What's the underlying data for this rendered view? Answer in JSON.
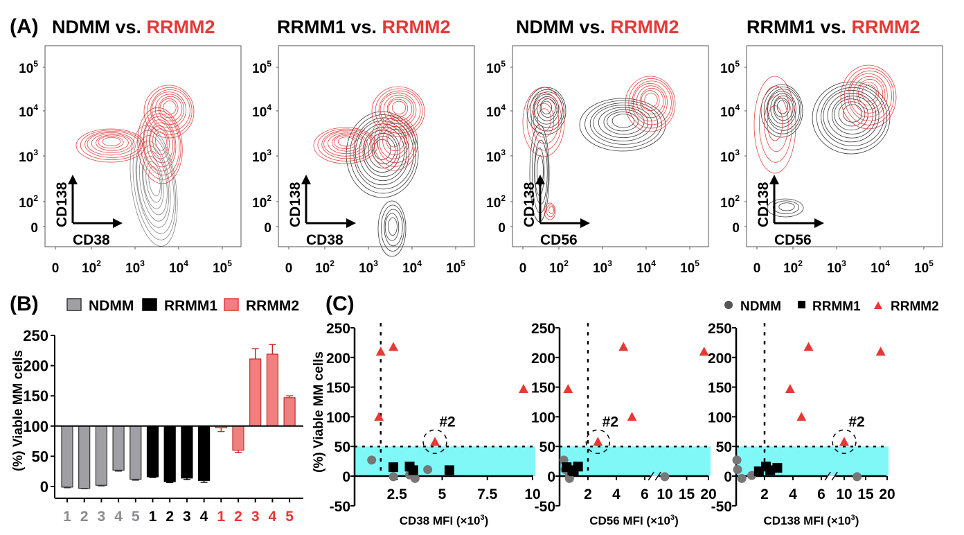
{
  "colors": {
    "ndmm": "#8c8c90",
    "rrmm1": "#000000",
    "rrmm2": "#e53935",
    "rrmm2_bar": "#f08080",
    "band": "#80f8f8",
    "contour_gray": "#555555"
  },
  "panel_a": {
    "label": "(A)",
    "plots": [
      {
        "title_a": "NDMM vs. ",
        "title_b": "RRMM2",
        "ylabel": "CD138",
        "xlabel": "CD38"
      },
      {
        "title_a": "RRMM1 vs. ",
        "title_b": "RRMM2",
        "ylabel": "CD138",
        "xlabel": "CD38"
      },
      {
        "title_a": "NDMM vs. ",
        "title_b": "RRMM2",
        "ylabel": "CD138",
        "xlabel": "CD56"
      },
      {
        "title_a": "RRMM1 vs. ",
        "title_b": "RRMM2",
        "ylabel": "CD138",
        "xlabel": "CD56"
      }
    ],
    "ticks": [
      {
        "base": "0",
        "exp": ""
      },
      {
        "base": "10",
        "exp": "2"
      },
      {
        "base": "10",
        "exp": "3"
      },
      {
        "base": "10",
        "exp": "4"
      },
      {
        "base": "10",
        "exp": "5"
      }
    ]
  },
  "panel_b": {
    "label": "(B)",
    "legend": [
      "NDMM",
      "RRMM1",
      "RRMM2"
    ]
  },
  "panel_c": {
    "label": "(C)",
    "legend": [
      "NDMM",
      "RRMM1",
      "RRMM2"
    ],
    "annotation": "#2"
  },
  "chart_data": [
    {
      "type": "bar",
      "title": "",
      "ylabel": "(%) Viable MM cells",
      "ylim": [
        -20,
        250
      ],
      "yticks": [
        "0",
        "50",
        "100",
        "150",
        "200",
        "250"
      ],
      "baseline": 100,
      "categories": [
        "1",
        "2",
        "3",
        "4",
        "5",
        "1",
        "2",
        "3",
        "4",
        "1",
        "2",
        "3",
        "4",
        "5"
      ],
      "groups": [
        "NDMM",
        "NDMM",
        "NDMM",
        "NDMM",
        "NDMM",
        "RRMM1",
        "RRMM1",
        "RRMM1",
        "RRMM1",
        "RRMM2",
        "RRMM2",
        "RRMM2",
        "RRMM2",
        "RRMM2"
      ],
      "values": [
        -1,
        -3,
        2,
        27,
        12,
        16,
        8,
        14,
        10,
        97,
        60,
        211,
        219,
        147
      ],
      "errors": [
        1,
        0.5,
        1,
        1.5,
        1.5,
        1,
        1.5,
        2.5,
        3,
        6,
        4,
        17,
        16,
        3
      ]
    },
    {
      "type": "scatter",
      "xlabel": "CD38 MFI (×10",
      "xlabel_sup": "3",
      "xlabel_end": ")",
      "ylabel": "(%) Viable MM cells",
      "ylim": [
        -50,
        250
      ],
      "yticks": [
        "-50",
        "0",
        "50",
        "100",
        "150",
        "200",
        "250"
      ],
      "xlim": [
        0,
        10
      ],
      "xticks": [
        "2.5",
        "5",
        "7.5",
        "10"
      ],
      "threshold_x": 1.6,
      "threshold_y": 50,
      "series": [
        {
          "name": "NDMM",
          "points": [
            [
              1.1,
              27
            ],
            [
              2.3,
              -1
            ],
            [
              3.2,
              2
            ],
            [
              3.5,
              -4
            ],
            [
              4.2,
              11
            ]
          ]
        },
        {
          "name": "RRMM1",
          "points": [
            [
              2.3,
              15
            ],
            [
              3.2,
              16
            ],
            [
              3.4,
              10
            ],
            [
              5.4,
              10
            ]
          ]
        },
        {
          "name": "RRMM2",
          "points": [
            [
              1.6,
              210
            ],
            [
              2.3,
              218
            ],
            [
              1.5,
              100
            ],
            [
              4.6,
              58
            ],
            [
              9.5,
              147
            ]
          ]
        }
      ]
    },
    {
      "type": "scatter",
      "xlabel": "CD56 MFI (×10",
      "xlabel_sup": "3",
      "xlabel_end": ")",
      "ylim": [
        -50,
        250
      ],
      "yticks": [
        "-50",
        "0",
        "50",
        "100",
        "150",
        "200",
        "250"
      ],
      "xlim": [
        0,
        20
      ],
      "axis_break": [
        6,
        10
      ],
      "xticks": [
        "2",
        "4",
        "6",
        "10",
        "15",
        "20"
      ],
      "threshold_x": 2,
      "threshold_y": 50,
      "series": [
        {
          "name": "NDMM",
          "points": [
            [
              0.3,
              27
            ],
            [
              0.4,
              11
            ],
            [
              0.7,
              2
            ],
            [
              0.7,
              -4
            ],
            [
              10,
              -1
            ]
          ]
        },
        {
          "name": "RRMM1",
          "points": [
            [
              0.5,
              15
            ],
            [
              0.9,
              10
            ],
            [
              1.0,
              8
            ],
            [
              1.3,
              16
            ]
          ]
        },
        {
          "name": "RRMM2",
          "points": [
            [
              0.6,
              147
            ],
            [
              4.5,
              218
            ],
            [
              5.1,
              100
            ],
            [
              2.7,
              58
            ],
            [
              19,
              210
            ]
          ]
        }
      ]
    },
    {
      "type": "scatter",
      "xlabel": "CD138 MFI (×10",
      "xlabel_sup": "3",
      "xlabel_end": ")",
      "ylim": [
        -50,
        250
      ],
      "yticks": [
        "-50",
        "0",
        "50",
        "100",
        "150",
        "200",
        "250"
      ],
      "xlim": [
        0,
        20
      ],
      "axis_break": [
        6,
        10
      ],
      "xticks": [
        "2",
        "4",
        "6",
        "10",
        "15",
        "20"
      ],
      "threshold_x": 2,
      "threshold_y": 50,
      "series": [
        {
          "name": "NDMM",
          "points": [
            [
              0.05,
              27
            ],
            [
              0.1,
              11
            ],
            [
              0.4,
              -4
            ],
            [
              1.1,
              1
            ],
            [
              13,
              -1
            ]
          ]
        },
        {
          "name": "RRMM1",
          "points": [
            [
              1.6,
              8
            ],
            [
              2.1,
              16
            ],
            [
              2.4,
              10
            ],
            [
              2.9,
              14
            ]
          ]
        },
        {
          "name": "RRMM2",
          "points": [
            [
              3.8,
              147
            ],
            [
              4.6,
              100
            ],
            [
              5.1,
              218
            ],
            [
              10,
              58
            ],
            [
              18.5,
              210
            ]
          ]
        }
      ]
    }
  ]
}
